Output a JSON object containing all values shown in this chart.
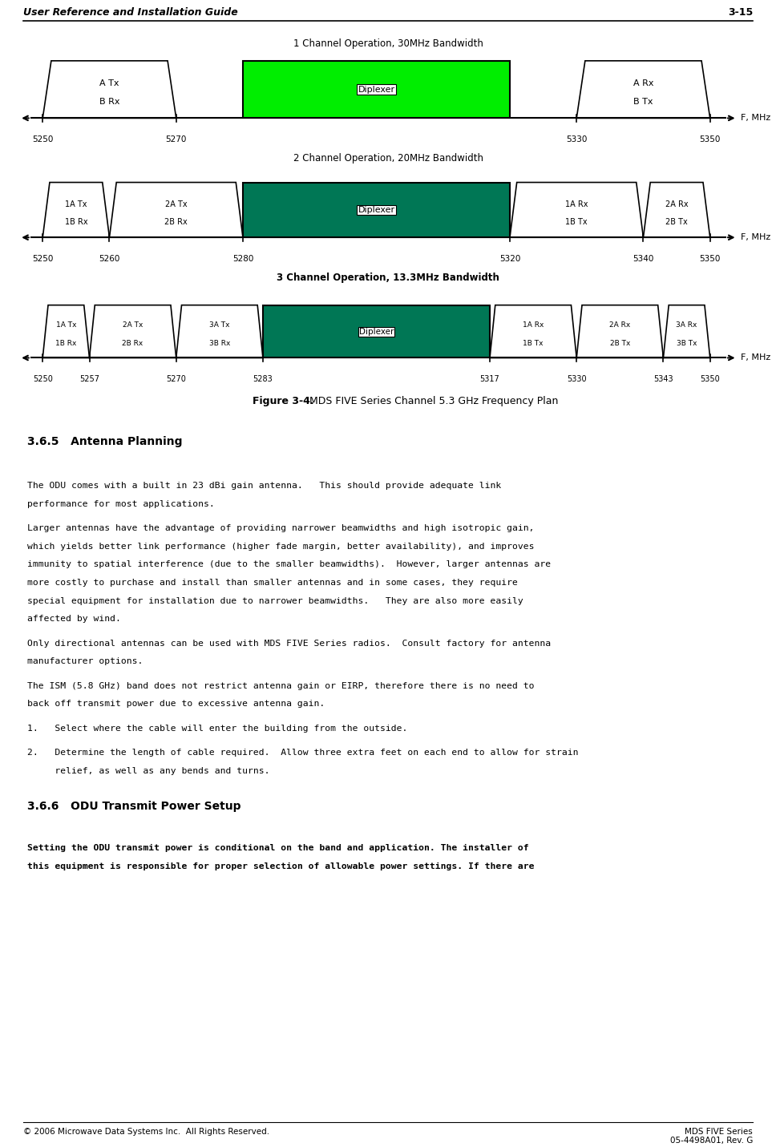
{
  "page_title": "User Reference and Installation Guide",
  "page_number": "3-15",
  "fig_caption_bold": "Figure 3-4.",
  "fig_caption_rest": "  MDS FIVE Series Channel 5.3 GHz Frequency Plan",
  "footer_left": "© 2006 Microwave Data Systems Inc.  All Rights Reserved.",
  "diagram_green_light": "#00EE00",
  "diagram_green_dark": "#007755",
  "ch1_title": "1 Channel Operation, 30MHz Bandwidth",
  "ch2_title": "2 Channel Operation, 20MHz Bandwidth",
  "ch3_title": "3 Channel Operation, 13.3MHz Bandwidth",
  "section_365_title": "3.6.5   Antenna Planning",
  "section_366_title": "3.6.6   ODU Transmit Power Setup",
  "f_label": "F, MHz",
  "f_min": 5250,
  "f_max": 5350,
  "x_min": 0.055,
  "x_max": 0.915
}
